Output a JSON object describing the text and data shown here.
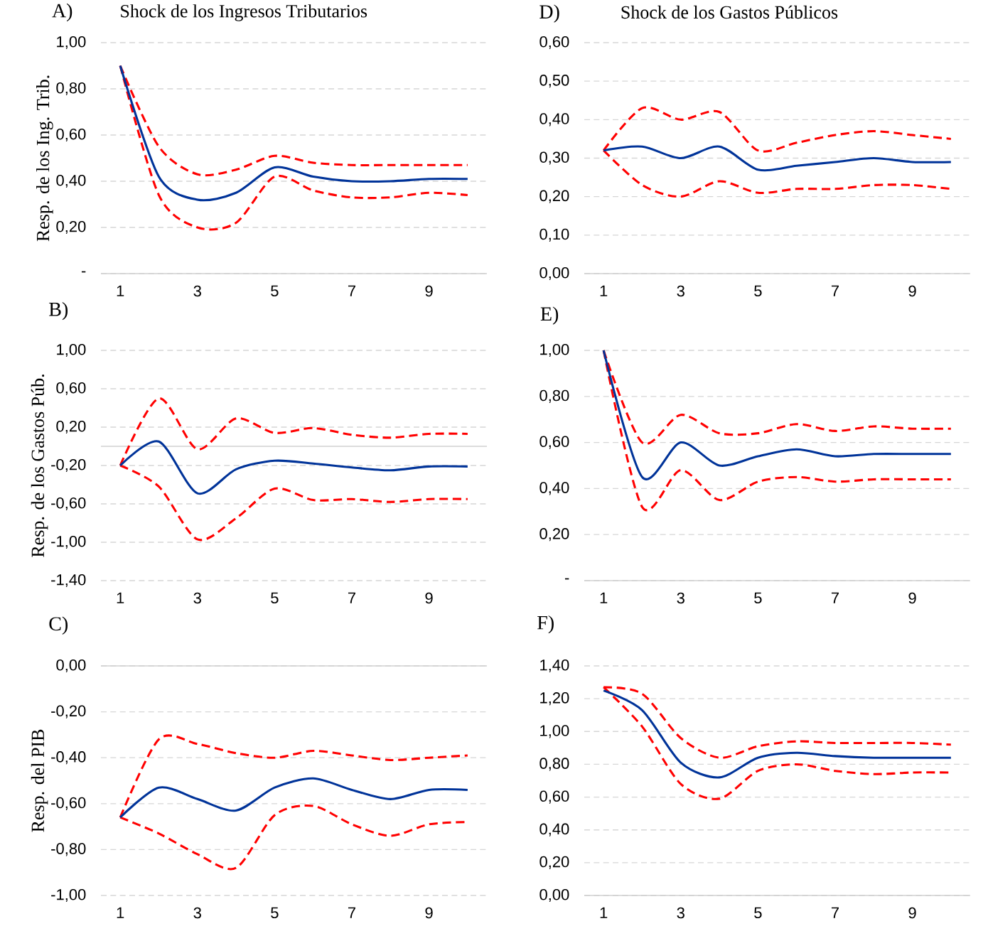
{
  "chart_data": [
    {
      "type": "line",
      "title": "A)",
      "subtitle": "Shock de los Ingresos Tributarios",
      "ylabel": "Resp. de los Ing. Trib.",
      "categories": [
        "1",
        null,
        "3",
        null,
        "5",
        null,
        "7",
        null,
        "9",
        null
      ],
      "ylim": [
        0,
        1.0
      ],
      "yticks": [
        {
          "value": 0,
          "label": "-"
        },
        {
          "value": 0.2,
          "label": "0,20"
        },
        {
          "value": 0.4,
          "label": "0,40"
        },
        {
          "value": 0.6,
          "label": "0,60"
        },
        {
          "value": 0.8,
          "label": "0,80"
        },
        {
          "value": 1.0,
          "label": "1,00"
        }
      ],
      "grid": "y",
      "marker": "none",
      "series": [
        {
          "color": "#ff0000",
          "line_style": "dashed",
          "values": [
            0.9,
            0.55,
            0.43,
            0.45,
            0.51,
            0.48,
            0.47,
            0.47,
            0.47,
            0.47
          ]
        },
        {
          "color": "#ff0000",
          "line_style": "dashed",
          "values": [
            0.9,
            0.34,
            0.2,
            0.22,
            0.42,
            0.36,
            0.33,
            0.33,
            0.35,
            0.34
          ]
        },
        {
          "color": "#003399",
          "line_style": "solid",
          "values": [
            0.9,
            0.42,
            0.32,
            0.35,
            0.46,
            0.42,
            0.4,
            0.4,
            0.41,
            0.41
          ]
        }
      ]
    },
    {
      "type": "line",
      "title": "D)",
      "subtitle": "Shock de los Gastos Públicos",
      "categories": [
        "1",
        null,
        "3",
        null,
        "5",
        null,
        "7",
        null,
        "9",
        null
      ],
      "ylim": [
        0,
        0.6
      ],
      "yticks": [
        {
          "value": 0,
          "label": "0,00"
        },
        {
          "value": 0.1,
          "label": "0,10"
        },
        {
          "value": 0.2,
          "label": "0,20"
        },
        {
          "value": 0.3,
          "label": "0,30"
        },
        {
          "value": 0.4,
          "label": "0,40"
        },
        {
          "value": 0.5,
          "label": "0,50"
        },
        {
          "value": 0.6,
          "label": "0,60"
        }
      ],
      "grid": "y",
      "marker": "none",
      "series": [
        {
          "color": "#ff0000",
          "line_style": "dashed",
          "values": [
            0.32,
            0.43,
            0.4,
            0.42,
            0.32,
            0.34,
            0.36,
            0.37,
            0.36,
            0.35
          ]
        },
        {
          "color": "#ff0000",
          "line_style": "dashed",
          "values": [
            0.32,
            0.23,
            0.2,
            0.24,
            0.21,
            0.22,
            0.22,
            0.23,
            0.23,
            0.22
          ]
        },
        {
          "color": "#003399",
          "line_style": "solid",
          "values": [
            0.32,
            0.33,
            0.3,
            0.33,
            0.27,
            0.28,
            0.29,
            0.3,
            0.29,
            0.29
          ]
        }
      ]
    },
    {
      "type": "line",
      "title": "B)",
      "ylabel": "Resp. de los Gastos Púb.",
      "categories": [
        "1",
        null,
        "3",
        null,
        "5",
        null,
        "7",
        null,
        "9",
        null
      ],
      "ylim": [
        -1.4,
        1.0
      ],
      "yticks": [
        {
          "value": -1.4,
          "label": "-1,40"
        },
        {
          "value": -1.0,
          "label": "-1,00"
        },
        {
          "value": -0.6,
          "label": "-0,60"
        },
        {
          "value": -0.2,
          "label": "-0,20"
        },
        {
          "value": 0.2,
          "label": "0,20"
        },
        {
          "value": 0.6,
          "label": "0,60"
        },
        {
          "value": 1.0,
          "label": "1,00"
        }
      ],
      "grid": "y",
      "marker": "none",
      "series": [
        {
          "color": "#ff0000",
          "line_style": "dashed",
          "values": [
            -0.2,
            0.5,
            -0.03,
            0.29,
            0.14,
            0.19,
            0.12,
            0.09,
            0.13,
            0.13
          ]
        },
        {
          "color": "#ff0000",
          "line_style": "dashed",
          "values": [
            -0.2,
            -0.42,
            -0.97,
            -0.75,
            -0.44,
            -0.56,
            -0.55,
            -0.58,
            -0.55,
            -0.55
          ]
        },
        {
          "color": "#003399",
          "line_style": "solid",
          "values": [
            -0.2,
            0.05,
            -0.49,
            -0.24,
            -0.15,
            -0.18,
            -0.22,
            -0.25,
            -0.21,
            -0.21
          ]
        }
      ]
    },
    {
      "type": "line",
      "title": "E)",
      "categories": [
        "1",
        null,
        "3",
        null,
        "5",
        null,
        "7",
        null,
        "9",
        null
      ],
      "ylim": [
        0,
        1.0
      ],
      "yticks": [
        {
          "value": 0,
          "label": "-"
        },
        {
          "value": 0.2,
          "label": "0,20"
        },
        {
          "value": 0.4,
          "label": "0,40"
        },
        {
          "value": 0.6,
          "label": "0,60"
        },
        {
          "value": 0.8,
          "label": "0,80"
        },
        {
          "value": 1.0,
          "label": "1,00"
        }
      ],
      "grid": "y",
      "marker": "none",
      "series": [
        {
          "color": "#ff0000",
          "line_style": "dashed",
          "values": [
            1.0,
            0.6,
            0.72,
            0.64,
            0.64,
            0.68,
            0.65,
            0.67,
            0.66,
            0.66
          ]
        },
        {
          "color": "#ff0000",
          "line_style": "dashed",
          "values": [
            1.0,
            0.32,
            0.48,
            0.35,
            0.43,
            0.45,
            0.43,
            0.44,
            0.44,
            0.44
          ]
        },
        {
          "color": "#003399",
          "line_style": "solid",
          "values": [
            1.0,
            0.45,
            0.6,
            0.5,
            0.54,
            0.57,
            0.54,
            0.55,
            0.55,
            0.55
          ]
        }
      ]
    },
    {
      "type": "line",
      "title": "C)",
      "ylabel": "Resp. del PIB",
      "categories": [
        "1",
        null,
        "3",
        null,
        "5",
        null,
        "7",
        null,
        "9",
        null
      ],
      "ylim": [
        -1.0,
        0
      ],
      "yticks": [
        {
          "value": -1.0,
          "label": "-1,00"
        },
        {
          "value": -0.8,
          "label": "-0,80"
        },
        {
          "value": -0.6,
          "label": "-0,60"
        },
        {
          "value": -0.4,
          "label": "-0,40"
        },
        {
          "value": -0.2,
          "label": "-0,20"
        },
        {
          "value": 0,
          "label": "0,00"
        }
      ],
      "grid": "y",
      "marker": "none",
      "series": [
        {
          "color": "#ff0000",
          "line_style": "dashed",
          "values": [
            -0.66,
            -0.32,
            -0.34,
            -0.38,
            -0.4,
            -0.37,
            -0.39,
            -0.41,
            -0.4,
            -0.39
          ]
        },
        {
          "color": "#ff0000",
          "line_style": "dashed",
          "values": [
            -0.66,
            -0.73,
            -0.82,
            -0.88,
            -0.65,
            -0.61,
            -0.69,
            -0.74,
            -0.69,
            -0.68
          ]
        },
        {
          "color": "#003399",
          "line_style": "solid",
          "values": [
            -0.66,
            -0.53,
            -0.58,
            -0.63,
            -0.53,
            -0.49,
            -0.54,
            -0.58,
            -0.54,
            -0.54
          ]
        }
      ]
    },
    {
      "type": "line",
      "title": "F)",
      "categories": [
        "1",
        null,
        "3",
        null,
        "5",
        null,
        "7",
        null,
        "9",
        null
      ],
      "ylim": [
        0,
        1.4
      ],
      "yticks": [
        {
          "value": 0,
          "label": "0,00"
        },
        {
          "value": 0.2,
          "label": "0,20"
        },
        {
          "value": 0.4,
          "label": "0,40"
        },
        {
          "value": 0.6,
          "label": "0,60"
        },
        {
          "value": 0.8,
          "label": "0,80"
        },
        {
          "value": 1.0,
          "label": "1,00"
        },
        {
          "value": 1.2,
          "label": "1,20"
        },
        {
          "value": 1.4,
          "label": "1,40"
        }
      ],
      "grid": "y",
      "marker": "none",
      "series": [
        {
          "color": "#ff0000",
          "line_style": "dashed",
          "values": [
            1.27,
            1.23,
            0.96,
            0.84,
            0.91,
            0.94,
            0.93,
            0.93,
            0.93,
            0.92
          ]
        },
        {
          "color": "#ff0000",
          "line_style": "dashed",
          "values": [
            1.27,
            1.03,
            0.68,
            0.59,
            0.76,
            0.8,
            0.76,
            0.74,
            0.75,
            0.75
          ]
        },
        {
          "color": "#003399",
          "line_style": "solid",
          "values": [
            1.25,
            1.13,
            0.81,
            0.72,
            0.84,
            0.87,
            0.85,
            0.84,
            0.84,
            0.84
          ]
        }
      ]
    }
  ]
}
